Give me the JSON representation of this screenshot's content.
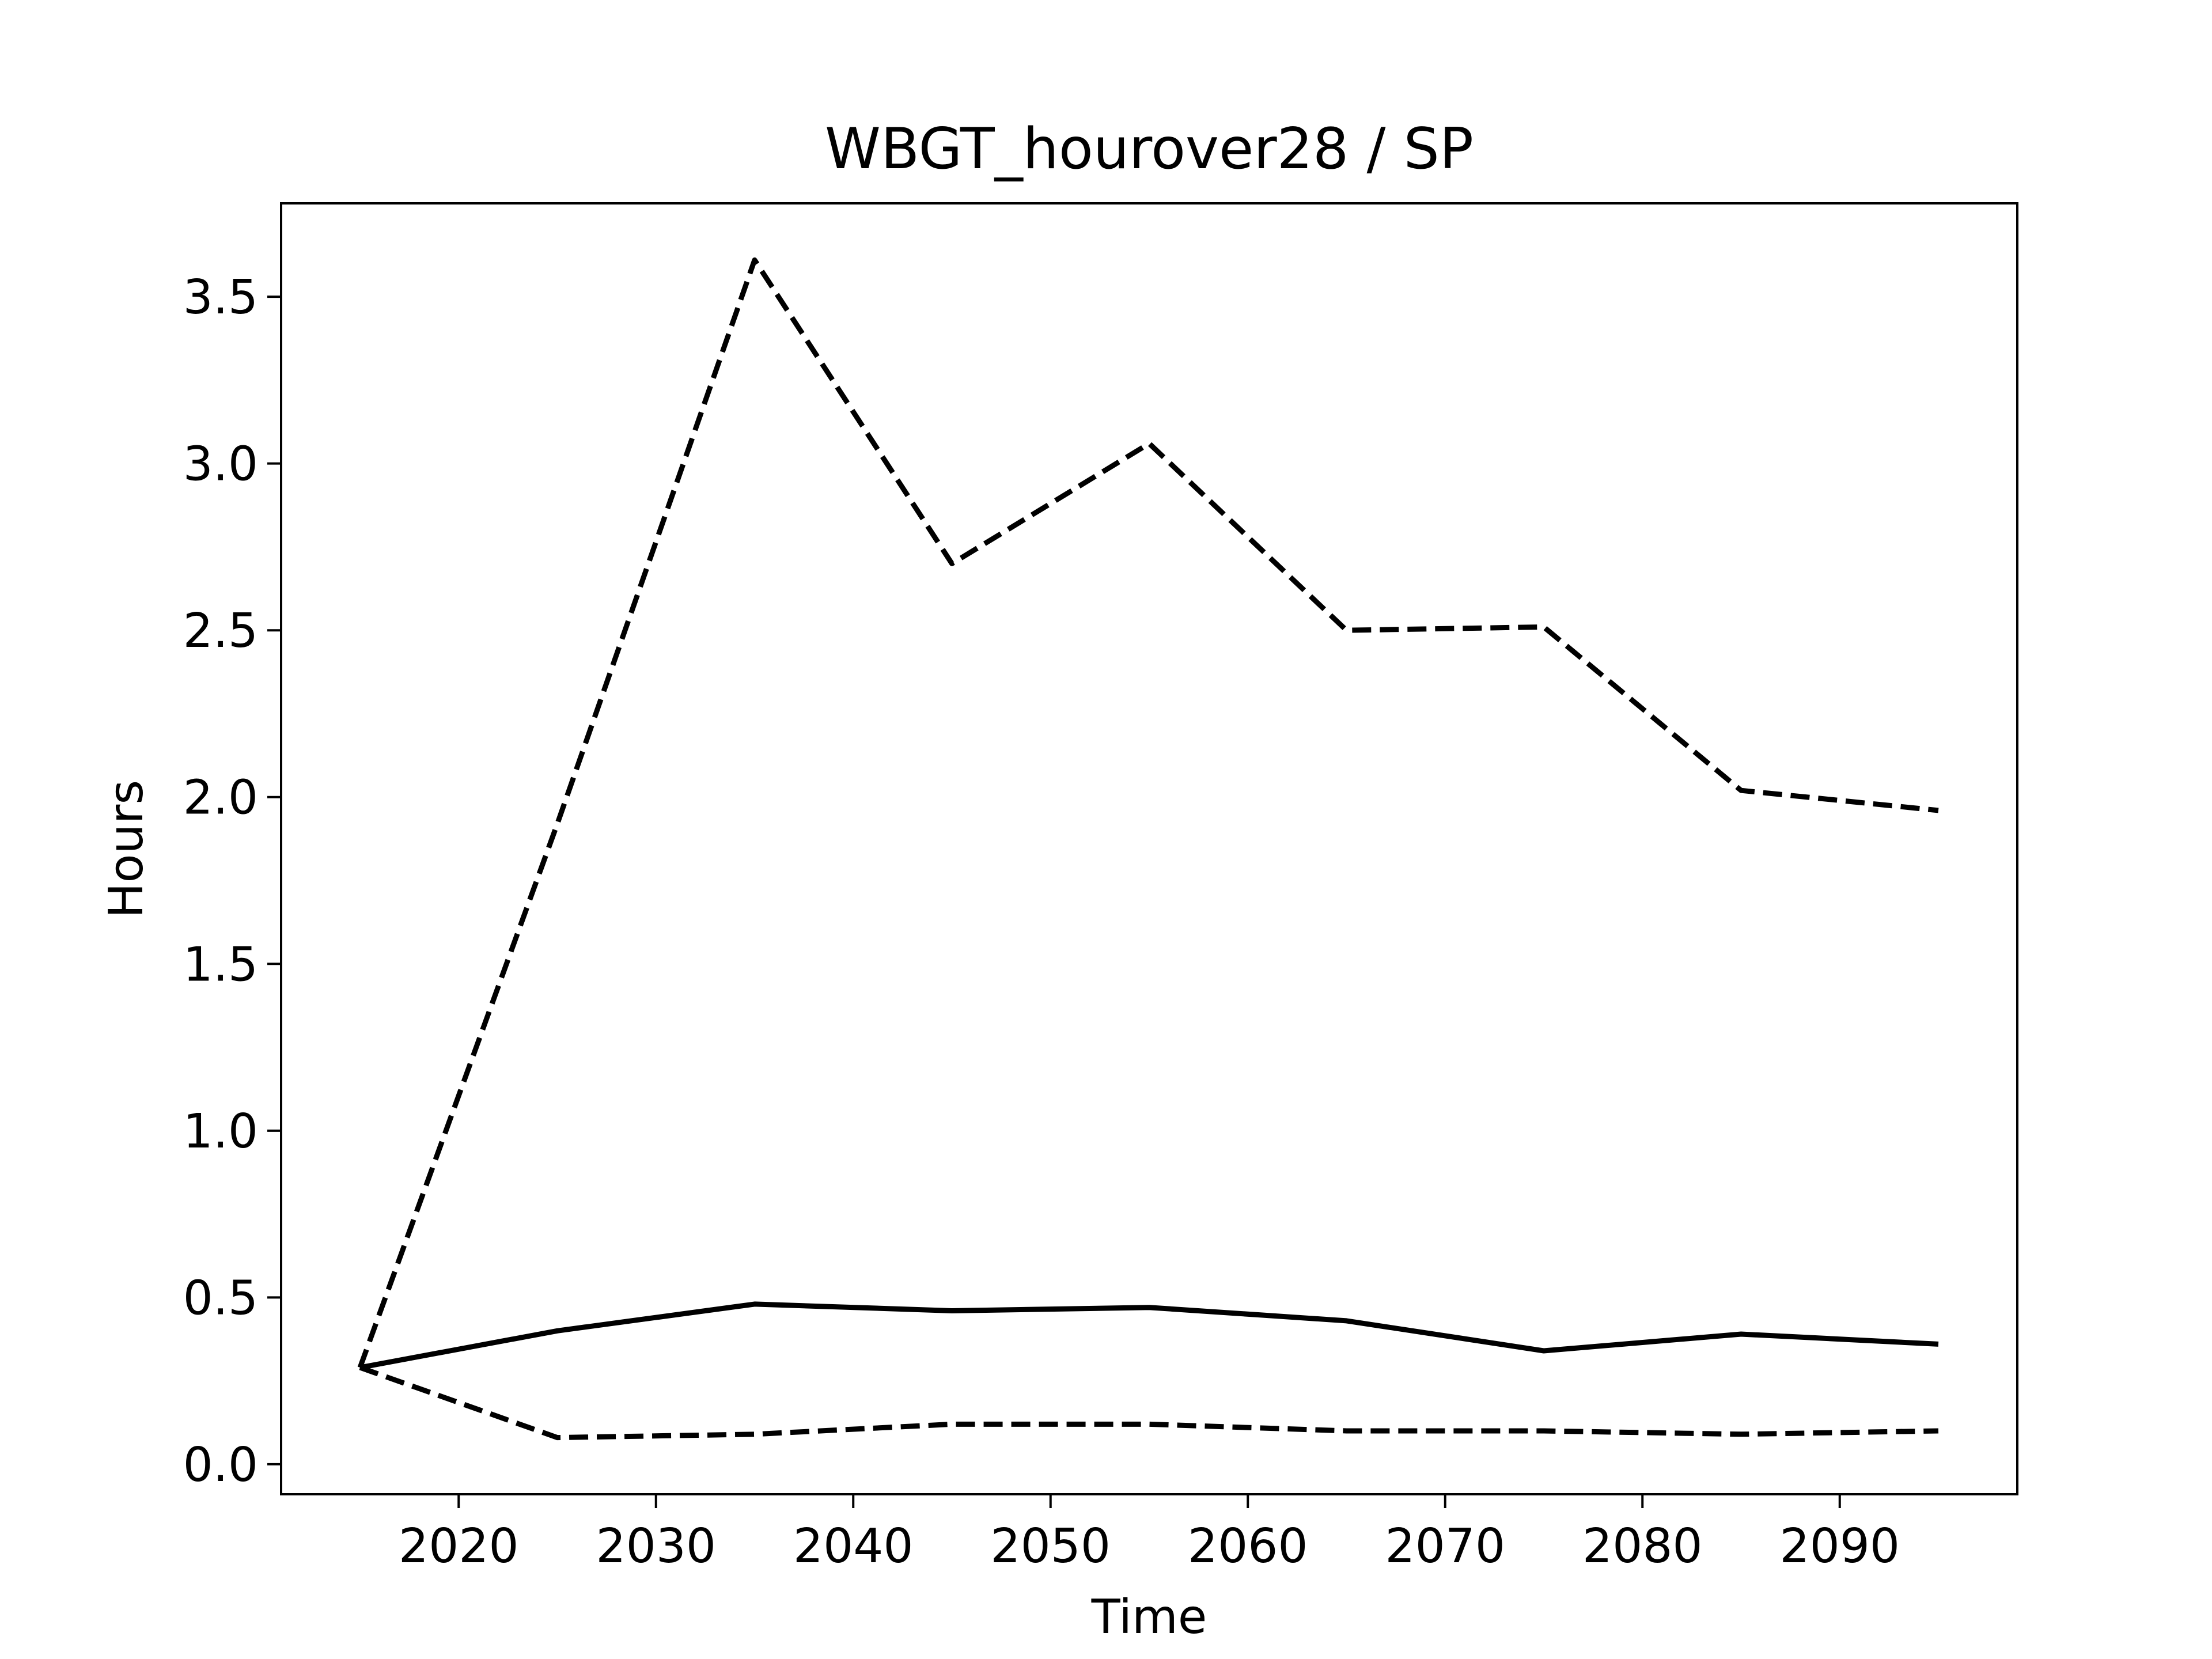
{
  "chart_data": {
    "type": "line",
    "title": "WBGT_hourover28 / SP",
    "xlabel": "Time",
    "ylabel": "Hours",
    "xlim": [
      2011,
      2099
    ],
    "ylim": [
      -0.09,
      3.78
    ],
    "xticks": [
      2020,
      2030,
      2040,
      2050,
      2060,
      2070,
      2080,
      2090
    ],
    "yticks": [
      0.0,
      0.5,
      1.0,
      1.5,
      2.0,
      2.5,
      3.0,
      3.5
    ],
    "ytick_labels": [
      "0.0",
      "0.5",
      "1.0",
      "1.5",
      "2.0",
      "2.5",
      "3.0",
      "3.5"
    ],
    "grid": false,
    "x": [
      2015,
      2025,
      2035,
      2045,
      2055,
      2065,
      2075,
      2085,
      2095
    ],
    "series": [
      {
        "style": "solid",
        "color": "#000000",
        "values": [
          0.29,
          0.4,
          0.48,
          0.46,
          0.47,
          0.43,
          0.34,
          0.39,
          0.36
        ]
      },
      {
        "style": "dashed",
        "color": "#000000",
        "values": [
          0.29,
          1.92,
          3.61,
          2.7,
          3.06,
          2.5,
          2.51,
          2.02,
          1.96
        ]
      },
      {
        "style": "dashed",
        "color": "#000000",
        "values": [
          0.29,
          0.08,
          0.09,
          0.12,
          0.12,
          0.1,
          0.1,
          0.09,
          0.1
        ]
      }
    ]
  }
}
